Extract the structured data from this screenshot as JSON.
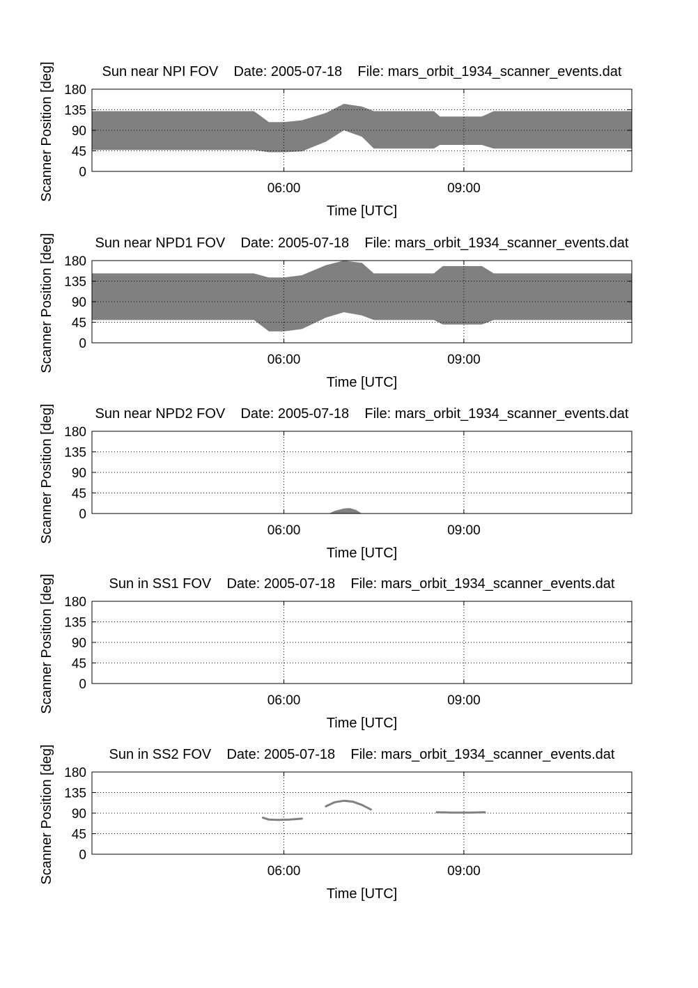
{
  "style": {
    "fill_color": "#808080",
    "axis_color": "#000000",
    "grid_color": "#000000",
    "background": "#ffffff"
  },
  "chart_data": [
    {
      "type": "area",
      "title": "Sun near NPI FOV    Date: 2005-07-18    File: mars_orbit_1934_scanner_events.dat",
      "xlabel": "Time [UTC]",
      "ylabel": "Scanner Position [deg]",
      "x_unit": "hours UTC",
      "xlim": [
        2.8,
        11.8
      ],
      "ylim": [
        0,
        180
      ],
      "xticks": [
        6,
        9
      ],
      "xtick_labels": [
        "06:00",
        "09:00"
      ],
      "yticks": [
        0,
        45,
        90,
        135,
        180
      ],
      "ytick_labels": [
        "0",
        "45",
        "90",
        "135",
        "180"
      ],
      "grid": true,
      "bands": [
        {
          "x": [
            2.8,
            5.5,
            5.75,
            6.0,
            6.3,
            6.7,
            7.0,
            7.3,
            7.5,
            8.5,
            8.6,
            9.3,
            9.5,
            11.8
          ],
          "lower": [
            47,
            47,
            42,
            42,
            44,
            65,
            90,
            76,
            50,
            50,
            58,
            58,
            50,
            50
          ],
          "upper": [
            132,
            132,
            108,
            108,
            112,
            128,
            148,
            142,
            132,
            132,
            120,
            120,
            132,
            132
          ]
        }
      ]
    },
    {
      "type": "area",
      "title": "Sun near NPD1 FOV    Date: 2005-07-18    File: mars_orbit_1934_scanner_events.dat",
      "xlabel": "Time [UTC]",
      "ylabel": "Scanner Position [deg]",
      "x_unit": "hours UTC",
      "xlim": [
        2.8,
        11.8
      ],
      "ylim": [
        0,
        180
      ],
      "xticks": [
        6,
        9
      ],
      "xtick_labels": [
        "06:00",
        "09:00"
      ],
      "yticks": [
        0,
        45,
        90,
        135,
        180
      ],
      "ytick_labels": [
        "0",
        "45",
        "90",
        "135",
        "180"
      ],
      "grid": true,
      "bands": [
        {
          "x": [
            2.8,
            5.5,
            5.75,
            6.0,
            6.3,
            6.7,
            7.0,
            7.3,
            7.5,
            8.5,
            8.65,
            9.3,
            9.5,
            11.8
          ],
          "lower": [
            50,
            50,
            25,
            25,
            30,
            55,
            67,
            60,
            50,
            50,
            40,
            40,
            50,
            50
          ],
          "upper": [
            152,
            152,
            143,
            143,
            148,
            170,
            180,
            175,
            152,
            152,
            168,
            168,
            152,
            152
          ]
        }
      ]
    },
    {
      "type": "area",
      "title": "Sun near NPD2 FOV    Date: 2005-07-18    File: mars_orbit_1934_scanner_events.dat",
      "xlabel": "Time [UTC]",
      "ylabel": "Scanner Position [deg]",
      "x_unit": "hours UTC",
      "xlim": [
        2.8,
        11.8
      ],
      "ylim": [
        0,
        180
      ],
      "xticks": [
        6,
        9
      ],
      "xtick_labels": [
        "06:00",
        "09:00"
      ],
      "yticks": [
        0,
        45,
        90,
        135,
        180
      ],
      "ytick_labels": [
        "0",
        "45",
        "90",
        "135",
        "180"
      ],
      "grid": true,
      "bands": [
        {
          "x": [
            6.75,
            6.85,
            7.0,
            7.1,
            7.2,
            7.3
          ],
          "lower": [
            0,
            0,
            0,
            0,
            0,
            0
          ],
          "upper": [
            0,
            6,
            11,
            12,
            8,
            0
          ]
        }
      ]
    },
    {
      "type": "line",
      "title": "Sun in SS1 FOV    Date: 2005-07-18    File: mars_orbit_1934_scanner_events.dat",
      "xlabel": "Time [UTC]",
      "ylabel": "Scanner Position [deg]",
      "x_unit": "hours UTC",
      "xlim": [
        2.8,
        11.8
      ],
      "ylim": [
        0,
        180
      ],
      "xticks": [
        6,
        9
      ],
      "xtick_labels": [
        "06:00",
        "09:00"
      ],
      "yticks": [
        0,
        45,
        90,
        135,
        180
      ],
      "ytick_labels": [
        "0",
        "45",
        "90",
        "135",
        "180"
      ],
      "grid": true,
      "series": []
    },
    {
      "type": "line",
      "title": "Sun in SS2 FOV    Date: 2005-07-18    File: mars_orbit_1934_scanner_events.dat",
      "xlabel": "Time [UTC]",
      "ylabel": "Scanner Position [deg]",
      "x_unit": "hours UTC",
      "xlim": [
        2.8,
        11.8
      ],
      "ylim": [
        0,
        180
      ],
      "xticks": [
        6,
        9
      ],
      "xtick_labels": [
        "06:00",
        "09:00"
      ],
      "yticks": [
        0,
        45,
        90,
        135,
        180
      ],
      "ytick_labels": [
        "0",
        "45",
        "90",
        "135",
        "180"
      ],
      "grid": true,
      "series": [
        {
          "x": [
            5.65,
            5.75,
            5.9,
            6.1,
            6.3
          ],
          "y": [
            80,
            76,
            75,
            76,
            78
          ]
        },
        {
          "x": [
            6.7,
            6.85,
            7.0,
            7.15,
            7.3,
            7.45
          ],
          "y": [
            105,
            114,
            117,
            115,
            108,
            98
          ]
        },
        {
          "x": [
            8.55,
            8.8,
            9.1,
            9.35
          ],
          "y": [
            92,
            91,
            91,
            92
          ]
        }
      ]
    }
  ]
}
